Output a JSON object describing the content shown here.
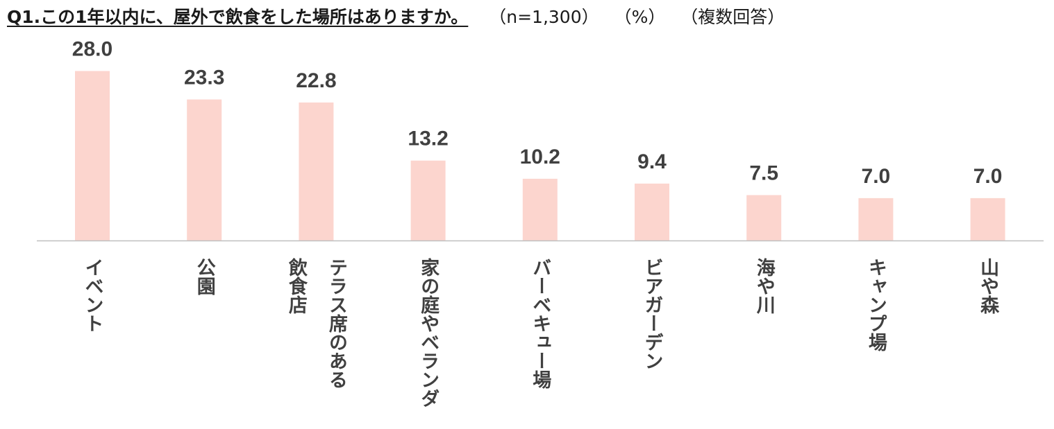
{
  "title": {
    "main": "Q1.この1年以内に、屋外で飲食をした場所はありますか。",
    "sample": "（n=1,300）",
    "unit": "（%）",
    "note": "（複数回答）"
  },
  "chart_data": {
    "type": "bar",
    "categories": [
      [
        "イベント"
      ],
      [
        "公園"
      ],
      [
        "テラス席のある",
        "飲食店"
      ],
      [
        "家の庭やベランダ"
      ],
      [
        "バーベキュー場"
      ],
      [
        "ビアガーデン"
      ],
      [
        "海や川"
      ],
      [
        "キャンプ場"
      ],
      [
        "山や森"
      ]
    ],
    "values": [
      28.0,
      23.3,
      22.8,
      13.2,
      10.2,
      9.4,
      7.5,
      7.0,
      7.0
    ],
    "value_labels": [
      "28.0",
      "23.3",
      "22.8",
      "13.2",
      "10.2",
      "9.4",
      "7.5",
      "7.0",
      "7.0"
    ],
    "unit": "%",
    "ylim": [
      0,
      30
    ],
    "grid": false,
    "legend": "none",
    "bar_color": "#fcd5ce",
    "axis_color": "#bfbfbf",
    "label_color": "#404040"
  }
}
